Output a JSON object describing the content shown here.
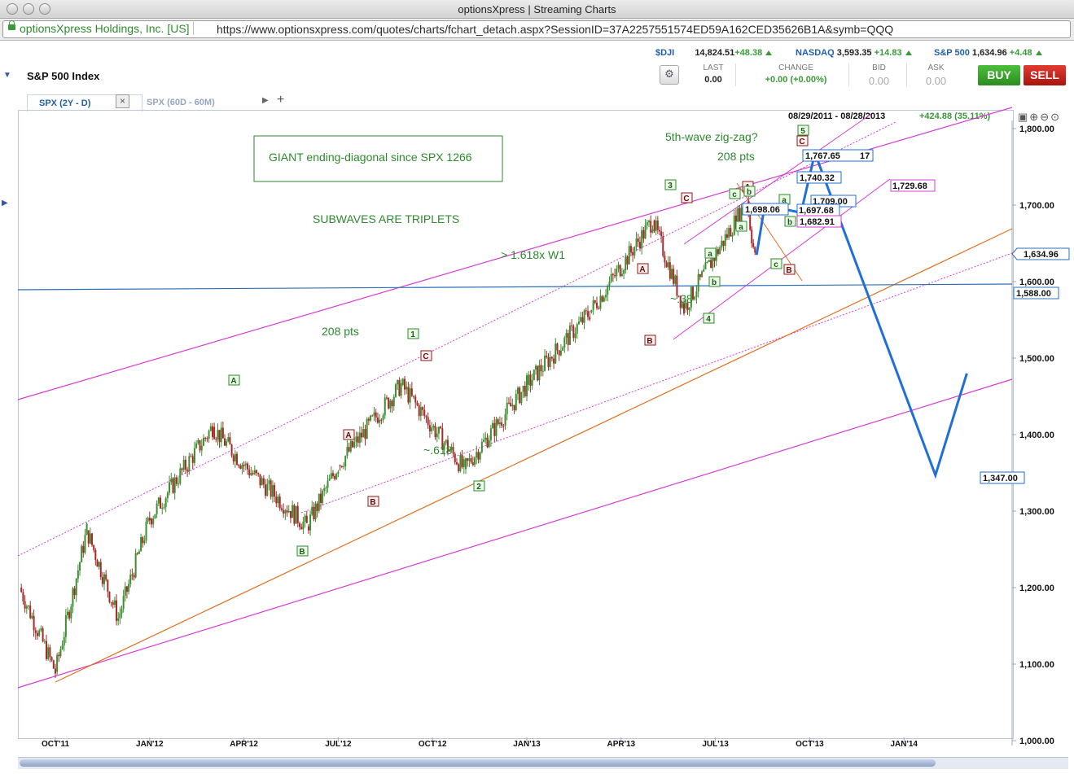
{
  "window": {
    "title": "optionsXpress | Streaming Charts"
  },
  "address_bar": {
    "site_identity": "optionsXpress Holdings, Inc. [US]",
    "url": "https://www.optionsxpress.com/quotes/charts/fchart_detach.aspx?SessionID=37A2257551574ED59A162CED35626B1A&symb=QQQ"
  },
  "header": {
    "title": "S&P 500 Index"
  },
  "tickers": [
    {
      "symbol": "$DJI",
      "value": "14,824.51",
      "change": "+48.38"
    },
    {
      "symbol": "NASDAQ",
      "value": "3,593.35",
      "change": "+14.83"
    },
    {
      "symbol": "S&P 500",
      "value": "1,634.96",
      "change": "+4.48"
    }
  ],
  "quote": {
    "last_label": "LAST",
    "last": "0.00",
    "change_label": "CHANGE",
    "change": "+0.00 (+0.00%)",
    "bid_label": "BID",
    "bid": "0.00",
    "ask_label": "ASK",
    "ask": "0.00"
  },
  "buttons": {
    "buy": "BUY",
    "sell": "SELL"
  },
  "tabs": [
    {
      "label": "SPX (2Y - D)",
      "active": true
    },
    {
      "label": "SPX (60D - 60M)",
      "active": false
    }
  ],
  "chart_data": {
    "type": "line",
    "date_range": "08/29/2011 - 08/28/2013",
    "range_change": "+424.88 (35.11%)",
    "x_ticks": [
      "OCT'11",
      "JAN'12",
      "APR'12",
      "JUL'12",
      "OCT'12",
      "JAN'13",
      "APR'13",
      "JUL'13",
      "OCT'13",
      "JAN'14"
    ],
    "ylim": [
      1000,
      1800
    ],
    "y_ticks": [
      "1,000.00",
      "1,100.00",
      "1,200.00",
      "1,300.00",
      "1,400.00",
      "1,500.00",
      "1,600.00",
      "1,700.00",
      "1,800.00"
    ],
    "last_price_label": "1,634.96",
    "horizontal_line_label": "1,588.00",
    "price_path": [
      [
        "Sep 2011",
        1200
      ],
      [
        "Oct 2011",
        1090
      ],
      [
        "Nov 2011",
        1275
      ],
      [
        "Dec 2011",
        1160
      ],
      [
        "Jan 2012",
        1290
      ],
      [
        "Mar 2012",
        1410
      ],
      [
        "Apr 2012",
        1360
      ],
      [
        "Jun 2012",
        1280
      ],
      [
        "Jul 2012",
        1360
      ],
      [
        "Sep 2012",
        1465
      ],
      [
        "Nov 2012",
        1355
      ],
      [
        "Jan 2013",
        1465
      ],
      [
        "Mar 2013",
        1560
      ],
      [
        "May 2013",
        1680
      ],
      [
        "Jun 2013",
        1565
      ],
      [
        "Aug 2013",
        1705
      ],
      [
        "Aug 2013",
        1630
      ]
    ],
    "projection": {
      "points": [
        "1,697.68",
        "1,767.65",
        "1,347.00"
      ],
      "path": [
        [
          "Aug 2013",
          1635
        ],
        [
          "Aug 2013",
          1700
        ],
        [
          "Sep 2013",
          1690
        ],
        [
          "Sep 2013",
          1768
        ],
        [
          "Feb 2014",
          1347
        ],
        [
          "Mar 2014",
          1480
        ]
      ]
    },
    "price_labels": [
      "1,767.65",
      "17",
      "1,740.32",
      "1,709.00",
      "1,698.06",
      "1,697.68",
      "1,682.91",
      "1,729.68"
    ],
    "annotations": [
      "GIANT ending-diagonal since SPX 1266",
      "SUBWAVES ARE TRIPLETS",
      "> 1.618x W1",
      "208 pts",
      "~.618",
      "~.38",
      "5th-wave zig-zag?",
      "208 pts"
    ],
    "wave_labels": [
      "1",
      "2",
      "3",
      "4",
      "5",
      "A",
      "B",
      "C",
      "a",
      "b",
      "c"
    ],
    "colors": {
      "trendline": "#d63bd6",
      "orange_line": "#e07020",
      "projection": "#1f6fd6",
      "horizontal": "#2b6fb8"
    }
  }
}
